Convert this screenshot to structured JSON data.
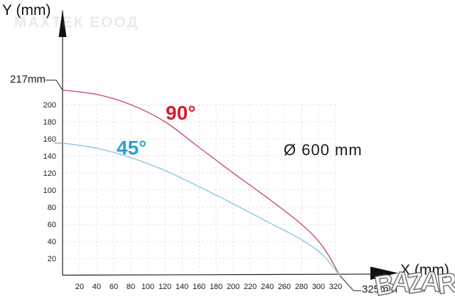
{
  "watermarks": {
    "top": "МАХТЕК ЕООД",
    "bottom": "BAZAR"
  },
  "labels": {
    "y_axis": "Y (mm)",
    "x_axis": "X (mm)",
    "y_start_90": "217mm",
    "x_end": "325mm",
    "diameter": "Ø 600 mm"
  },
  "chart_data": {
    "type": "line",
    "title": "",
    "xlabel": "X (mm)",
    "ylabel": "Y (mm)",
    "xlim": [
      0,
      345
    ],
    "ylim": [
      0,
      230
    ],
    "x_ticks": [
      20,
      40,
      60,
      80,
      100,
      120,
      140,
      160,
      180,
      200,
      220,
      240,
      260,
      280,
      300,
      320
    ],
    "y_ticks": [
      20,
      40,
      60,
      80,
      100,
      120,
      140,
      160,
      180,
      200
    ],
    "grid": "dotted every 20 mm",
    "legend_position": "labels on curves",
    "annotations": {
      "y_intercept_90": 217,
      "y_intercept_45": 155,
      "x_intercept_both": 325,
      "blade_diameter_text": "Ø 600 mm"
    },
    "series": [
      {
        "name": "90°",
        "color": "#cd5363",
        "label_color": "#d21f2f",
        "points": [
          [
            0,
            217
          ],
          [
            40,
            212
          ],
          [
            80,
            200
          ],
          [
            120,
            180
          ],
          [
            160,
            150
          ],
          [
            200,
            120
          ],
          [
            240,
            91
          ],
          [
            280,
            60
          ],
          [
            305,
            34
          ],
          [
            325,
            0
          ]
        ]
      },
      {
        "name": "45°",
        "color": "#8dc8db",
        "label_color": "#2f9fd3",
        "points": [
          [
            0,
            155
          ],
          [
            40,
            149
          ],
          [
            80,
            138
          ],
          [
            120,
            123
          ],
          [
            160,
            104
          ],
          [
            200,
            84
          ],
          [
            240,
            63
          ],
          [
            280,
            42
          ],
          [
            305,
            24
          ],
          [
            325,
            0
          ]
        ]
      }
    ],
    "style": {
      "axis_color": "#222222",
      "grid_color": "#cfcfd4",
      "leader_line_color": "#333333",
      "tick_label_color": "#1c1c1c"
    }
  }
}
